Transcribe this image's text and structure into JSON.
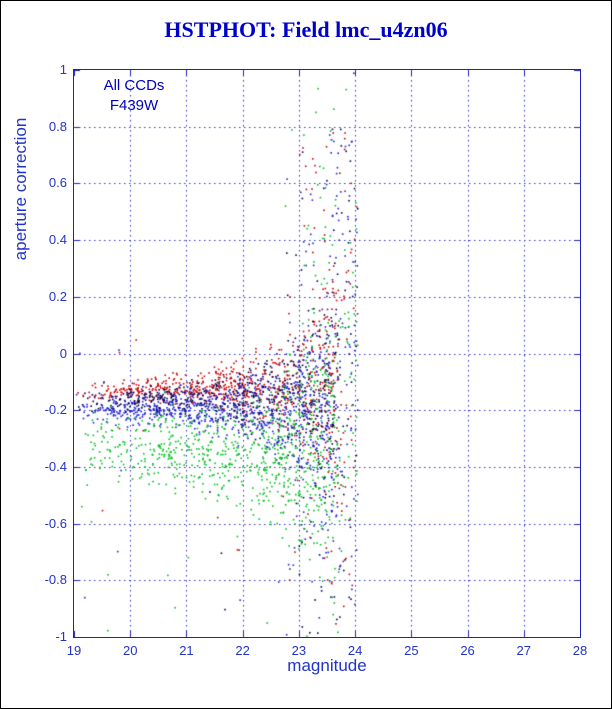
{
  "frame": {
    "background": "#ffffff",
    "border_color": "#000000"
  },
  "chart_data": {
    "type": "scatter",
    "title": "HSTPHOT: Field lmc_u4zn06",
    "title_color": "#0000cc",
    "xlabel": "magnitude",
    "ylabel": "aperture correction",
    "label_color": "#2233cc",
    "tick_label_color": "#2233cc",
    "axis_color": "#2222bb",
    "xlim": [
      19,
      28
    ],
    "ylim": [
      -1,
      1
    ],
    "x_ticks": [
      19,
      20,
      21,
      22,
      23,
      24,
      25,
      26,
      27,
      28
    ],
    "x_tick_labels": [
      "19",
      "20",
      "21",
      "22",
      "23",
      "24",
      "25",
      "26",
      "27",
      "28"
    ],
    "y_ticks": [
      -1,
      -0.8,
      -0.6,
      -0.4,
      -0.2,
      0,
      0.2,
      0.4,
      0.6,
      0.8,
      1
    ],
    "y_tick_labels": [
      "-1",
      "-0.8",
      "-0.6",
      "-0.4",
      "-0.2",
      "0",
      "0.2",
      "0.4",
      "0.6",
      "0.8",
      "1"
    ],
    "grid": {
      "show": true,
      "style": "dashed",
      "color": "#3333cc"
    },
    "annotations": [
      {
        "text": "All CCDs"
      },
      {
        "text": "F439W"
      }
    ],
    "annotation_color": "#0000bb",
    "description": "Aperture correction vs. magnitude for roughly 3000 stars measured on four CCD chips (red, dark-navy, blue, green points). Stars from mag 19 to ~22.5 form a tight horizontal band near -0.1 to -0.35 (green chip lower and broader). Near the faint limit (mag 22.7-24) the scatter balloons into a dense vertical plume spanning the full -1 to +1 range. Essentially no points fainter than mag 24.",
    "marker_size_px": 1.6,
    "seed": 1337,
    "band": {
      "x_pow": 0.62,
      "x_span": 4.7
    },
    "sigma_growth": {
      "amp": 0.004,
      "rate": 1.02
    },
    "plume": {
      "x_min": 22.7,
      "x_span": 1.35,
      "x_pow": 0.55,
      "y_center": -0.05,
      "y_halfwidth": 1.1
    },
    "outlier": {
      "x_span": 4.5,
      "y_min": -1.0,
      "y_span": 1.15
    },
    "series": [
      {
        "name": "ccd-chip-1",
        "color": "#cc0000",
        "n_band": 620,
        "band_center": -0.13,
        "band_slope": 0.004,
        "band_sigma0": 0.035,
        "n_plume": 125,
        "n_outliers": 10
      },
      {
        "name": "ccd-chip-2",
        "color": "#000055",
        "n_band": 620,
        "band_center": -0.165,
        "band_slope": 0.0,
        "band_sigma0": 0.042,
        "n_plume": 120,
        "n_outliers": 10
      },
      {
        "name": "ccd-chip-3",
        "color": "#2020dd",
        "n_band": 660,
        "band_center": -0.2,
        "band_slope": 0.0,
        "band_sigma0": 0.055,
        "n_plume": 135,
        "n_outliers": 12
      },
      {
        "name": "ccd-chip-4",
        "color": "#00c020",
        "n_band": 750,
        "band_center": -0.32,
        "band_slope": -0.01,
        "band_sigma0": 0.14,
        "n_plume": 135,
        "n_outliers": 20
      }
    ]
  }
}
